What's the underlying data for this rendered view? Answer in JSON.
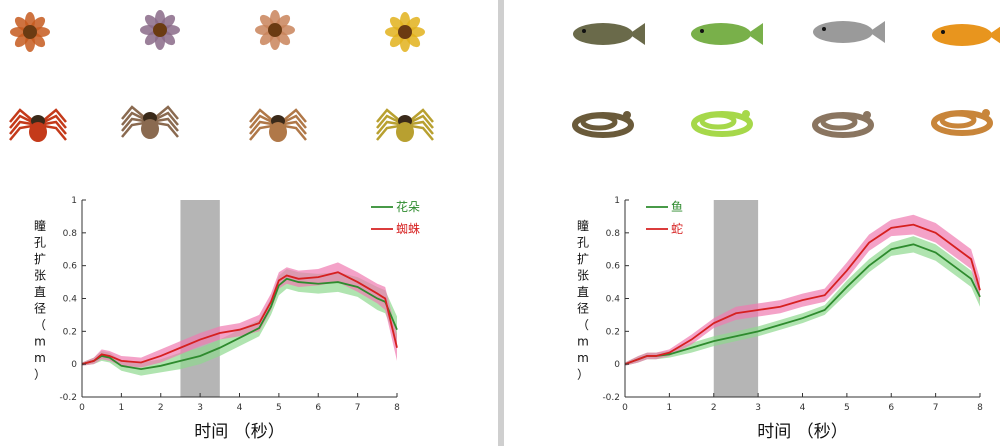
{
  "panels": [
    {
      "images": [
        {
          "icon": "flower-icon",
          "color": "#c65a1e"
        },
        {
          "icon": "flower-icon",
          "color": "#8a6a88"
        },
        {
          "icon": "flower-icon",
          "color": "#c9845a"
        },
        {
          "icon": "flower-icon",
          "color": "#e2b21c"
        },
        {
          "icon": "spider-icon",
          "color": "#c43a1a"
        },
        {
          "icon": "spider-icon",
          "color": "#8a6a50"
        },
        {
          "icon": "spider-icon",
          "color": "#b07848"
        },
        {
          "icon": "spider-icon",
          "color": "#b8a030"
        }
      ]
    },
    {
      "images": [
        {
          "icon": "fish-icon",
          "color": "#6a6a4a"
        },
        {
          "icon": "fish-icon",
          "color": "#79b04a"
        },
        {
          "icon": "fish-icon",
          "color": "#9a9a9a"
        },
        {
          "icon": "fish-icon",
          "color": "#e8951e"
        },
        {
          "icon": "snake-icon",
          "color": "#6a5a3a"
        },
        {
          "icon": "snake-icon",
          "color": "#a6d84a"
        },
        {
          "icon": "snake-icon",
          "color": "#8a7560"
        },
        {
          "icon": "snake-icon",
          "color": "#c8853a"
        }
      ]
    }
  ],
  "chart_data": [
    {
      "type": "line",
      "xlabel": "时间 （秒）",
      "ylabel": "瞳孔扩张直径（mm）",
      "xlim": [
        0,
        8
      ],
      "ylim": [
        -0.2,
        1
      ],
      "xticks": [
        0,
        1,
        2,
        3,
        4,
        5,
        6,
        7,
        8
      ],
      "yticks": [
        -0.2,
        0,
        0.2,
        0.4,
        0.6,
        0.8,
        1
      ],
      "shaded_region": [
        2.5,
        3.5
      ],
      "legend_position": "top-right",
      "series": [
        {
          "name": "花朵",
          "color": "#2e8b2e",
          "band_color": "#8fd88f",
          "x": [
            0,
            0.3,
            0.5,
            0.7,
            1.0,
            1.5,
            2.0,
            2.5,
            3.0,
            3.5,
            4.0,
            4.5,
            4.8,
            5.0,
            5.2,
            5.5,
            6.0,
            6.5,
            7.0,
            7.5,
            7.7,
            8.0
          ],
          "y": [
            0,
            0.02,
            0.05,
            0.04,
            -0.01,
            -0.03,
            -0.01,
            0.02,
            0.05,
            0.1,
            0.16,
            0.22,
            0.35,
            0.48,
            0.52,
            0.5,
            0.49,
            0.5,
            0.47,
            0.4,
            0.38,
            0.21
          ],
          "err": [
            0.01,
            0.02,
            0.03,
            0.03,
            0.03,
            0.04,
            0.04,
            0.05,
            0.05,
            0.05,
            0.05,
            0.05,
            0.05,
            0.06,
            0.06,
            0.06,
            0.06,
            0.06,
            0.06,
            0.07,
            0.07,
            0.08
          ]
        },
        {
          "name": "蜘蛛",
          "color": "#d62020",
          "band_color": "#f07ab0",
          "x": [
            0,
            0.3,
            0.5,
            0.7,
            1.0,
            1.5,
            2.0,
            2.5,
            3.0,
            3.5,
            4.0,
            4.5,
            4.8,
            5.0,
            5.2,
            5.5,
            6.0,
            6.5,
            7.0,
            7.5,
            7.7,
            8.0
          ],
          "y": [
            0,
            0.02,
            0.06,
            0.05,
            0.02,
            0.01,
            0.05,
            0.1,
            0.15,
            0.19,
            0.21,
            0.25,
            0.38,
            0.51,
            0.54,
            0.52,
            0.53,
            0.56,
            0.5,
            0.43,
            0.4,
            0.1
          ],
          "err": [
            0.01,
            0.02,
            0.03,
            0.03,
            0.03,
            0.03,
            0.04,
            0.04,
            0.04,
            0.04,
            0.04,
            0.05,
            0.05,
            0.05,
            0.05,
            0.05,
            0.05,
            0.06,
            0.06,
            0.06,
            0.07,
            0.08
          ]
        }
      ]
    },
    {
      "type": "line",
      "xlabel": "时间 （秒）",
      "ylabel": "瞳孔扩张直径（mm）",
      "xlim": [
        0,
        8
      ],
      "ylim": [
        -0.2,
        1
      ],
      "xticks": [
        0,
        1,
        2,
        3,
        4,
        5,
        6,
        7,
        8
      ],
      "yticks": [
        -0.2,
        0,
        0.2,
        0.4,
        0.6,
        0.8,
        1
      ],
      "shaded_region": [
        2,
        3
      ],
      "legend_position": "top-left",
      "series": [
        {
          "name": "鱼",
          "color": "#2e8b2e",
          "band_color": "#8fd88f",
          "x": [
            0,
            0.3,
            0.5,
            0.7,
            1.0,
            1.5,
            2.0,
            2.5,
            3.0,
            3.5,
            4.0,
            4.5,
            5.0,
            5.5,
            6.0,
            6.5,
            7.0,
            7.5,
            7.8,
            8.0
          ],
          "y": [
            0,
            0.03,
            0.05,
            0.05,
            0.06,
            0.1,
            0.14,
            0.17,
            0.2,
            0.24,
            0.28,
            0.33,
            0.47,
            0.6,
            0.7,
            0.73,
            0.68,
            0.58,
            0.52,
            0.41
          ],
          "err": [
            0.01,
            0.02,
            0.02,
            0.02,
            0.02,
            0.03,
            0.03,
            0.03,
            0.03,
            0.03,
            0.03,
            0.03,
            0.04,
            0.04,
            0.04,
            0.05,
            0.05,
            0.05,
            0.05,
            0.06
          ]
        },
        {
          "name": "蛇",
          "color": "#d62020",
          "band_color": "#f07ab0",
          "x": [
            0,
            0.3,
            0.5,
            0.7,
            1.0,
            1.5,
            2.0,
            2.5,
            3.0,
            3.5,
            4.0,
            4.5,
            5.0,
            5.5,
            6.0,
            6.5,
            7.0,
            7.5,
            7.8,
            8.0
          ],
          "y": [
            0,
            0.03,
            0.05,
            0.05,
            0.07,
            0.15,
            0.25,
            0.31,
            0.33,
            0.35,
            0.39,
            0.42,
            0.57,
            0.74,
            0.83,
            0.85,
            0.8,
            0.7,
            0.64,
            0.45
          ],
          "err": [
            0.01,
            0.02,
            0.02,
            0.02,
            0.02,
            0.03,
            0.03,
            0.04,
            0.04,
            0.04,
            0.04,
            0.04,
            0.05,
            0.05,
            0.05,
            0.06,
            0.06,
            0.06,
            0.06,
            0.07
          ]
        }
      ]
    }
  ]
}
